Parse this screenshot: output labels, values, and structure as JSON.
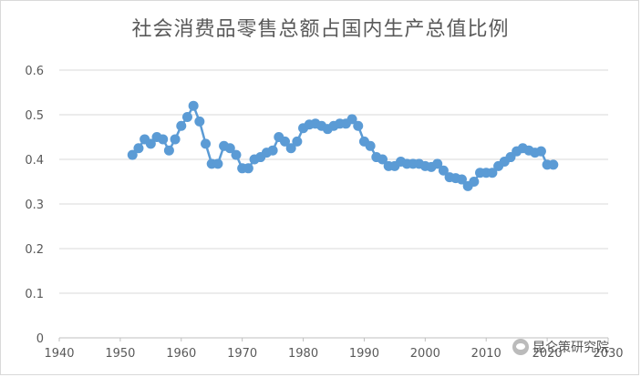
{
  "chart_data": {
    "type": "line",
    "title": "社会消费品零售总额占国内生产总值比例",
    "xlabel": "",
    "ylabel": "",
    "xlim": [
      1940,
      2030
    ],
    "ylim": [
      0,
      0.6
    ],
    "x_ticks": [
      "1940",
      "1950",
      "1960",
      "1970",
      "1980",
      "1990",
      "2000",
      "2010",
      "2020",
      "2030"
    ],
    "y_ticks": [
      "0",
      "0.1",
      "0.2",
      "0.3",
      "0.4",
      "0.5",
      "0.6"
    ],
    "grid": "horizontal",
    "legend": "none",
    "series": [
      {
        "color": "#5b9bd5",
        "x": [
          1952,
          1953,
          1954,
          1955,
          1956,
          1957,
          1958,
          1959,
          1960,
          1961,
          1962,
          1963,
          1964,
          1965,
          1966,
          1967,
          1968,
          1969,
          1970,
          1971,
          1972,
          1973,
          1974,
          1975,
          1976,
          1977,
          1978,
          1979,
          1980,
          1981,
          1982,
          1983,
          1984,
          1985,
          1986,
          1987,
          1988,
          1989,
          1990,
          1991,
          1992,
          1993,
          1994,
          1995,
          1996,
          1997,
          1998,
          1999,
          2000,
          2001,
          2002,
          2003,
          2004,
          2005,
          2006,
          2007,
          2008,
          2009,
          2010,
          2011,
          2012,
          2013,
          2014,
          2015,
          2016,
          2017,
          2018,
          2019,
          2020,
          2021
        ],
        "y": [
          0.41,
          0.425,
          0.445,
          0.435,
          0.45,
          0.445,
          0.42,
          0.445,
          0.475,
          0.495,
          0.52,
          0.485,
          0.435,
          0.39,
          0.39,
          0.43,
          0.425,
          0.41,
          0.38,
          0.38,
          0.4,
          0.405,
          0.415,
          0.42,
          0.45,
          0.44,
          0.425,
          0.44,
          0.47,
          0.478,
          0.48,
          0.475,
          0.468,
          0.475,
          0.48,
          0.48,
          0.49,
          0.475,
          0.44,
          0.43,
          0.405,
          0.4,
          0.385,
          0.385,
          0.395,
          0.39,
          0.39,
          0.39,
          0.385,
          0.383,
          0.39,
          0.375,
          0.36,
          0.358,
          0.355,
          0.34,
          0.35,
          0.37,
          0.37,
          0.37,
          0.385,
          0.395,
          0.405,
          0.418,
          0.425,
          0.42,
          0.415,
          0.418,
          0.388,
          0.388
        ]
      }
    ]
  },
  "watermark": {
    "text": "昆仑策研究院",
    "icon": "wechat-icon"
  }
}
